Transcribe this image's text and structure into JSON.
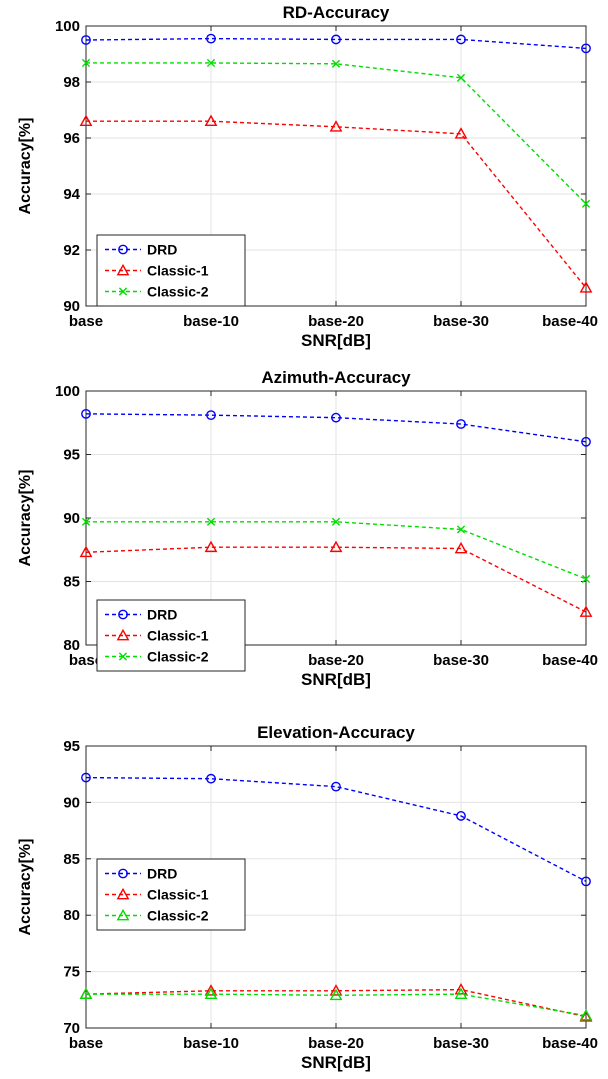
{
  "chart_data": [
    {
      "type": "line",
      "title": "RD-Accuracy",
      "xlabel": "SNR[dB]",
      "ylabel": "Accuracy[%]",
      "categories": [
        "base",
        "base-10",
        "base-20",
        "base-30",
        "base-40"
      ],
      "ylim": [
        90,
        100
      ],
      "yticks": [
        90,
        92,
        94,
        96,
        98,
        100
      ],
      "grid": true,
      "legend_position": "bottom-left",
      "series": [
        {
          "name": "DRD",
          "color": "#0000ff",
          "marker": "circle",
          "values": [
            99.5,
            99.55,
            99.52,
            99.52,
            99.2
          ]
        },
        {
          "name": "Classic-1",
          "color": "#ff0000",
          "marker": "triangle",
          "values": [
            96.6,
            96.6,
            96.4,
            96.15,
            90.65
          ]
        },
        {
          "name": "Classic-2",
          "color": "#00dd00",
          "marker": "x",
          "values": [
            98.68,
            98.68,
            98.65,
            98.15,
            93.65
          ]
        }
      ]
    },
    {
      "type": "line",
      "title": "Azimuth-Accuracy",
      "xlabel": "SNR[dB]",
      "ylabel": "Accuracy[%]",
      "categories": [
        "base",
        "base-10",
        "base-20",
        "base-30",
        "base-40"
      ],
      "ylim": [
        80,
        100
      ],
      "yticks": [
        80,
        85,
        90,
        95,
        100
      ],
      "grid": true,
      "legend_position": "bottom-left",
      "series": [
        {
          "name": "DRD",
          "color": "#0000ff",
          "marker": "circle",
          "values": [
            98.2,
            98.1,
            97.9,
            97.4,
            96.0
          ]
        },
        {
          "name": "Classic-1",
          "color": "#ff0000",
          "marker": "triangle",
          "values": [
            87.3,
            87.7,
            87.7,
            87.6,
            82.6
          ]
        },
        {
          "name": "Classic-2",
          "color": "#00dd00",
          "marker": "x",
          "values": [
            89.7,
            89.7,
            89.7,
            89.1,
            85.2
          ]
        }
      ]
    },
    {
      "type": "line",
      "title": "Elevation-Accuracy",
      "xlabel": "SNR[dB]",
      "ylabel": "Accuracy[%]",
      "categories": [
        "base",
        "base-10",
        "base-20",
        "base-30",
        "base-40"
      ],
      "ylim": [
        70,
        95
      ],
      "yticks": [
        70,
        75,
        80,
        85,
        90,
        95
      ],
      "grid": true,
      "legend_position": "middle-left",
      "series": [
        {
          "name": "DRD",
          "color": "#0000ff",
          "marker": "circle",
          "values": [
            92.2,
            92.1,
            91.4,
            88.8,
            83.0
          ]
        },
        {
          "name": "Classic-1",
          "color": "#ff0000",
          "marker": "triangle",
          "values": [
            73.0,
            73.3,
            73.3,
            73.4,
            71.0
          ]
        },
        {
          "name": "Classic-2",
          "color": "#00dd00",
          "marker": "triangle",
          "values": [
            73.0,
            73.0,
            72.9,
            73.0,
            71.1
          ]
        }
      ]
    }
  ]
}
